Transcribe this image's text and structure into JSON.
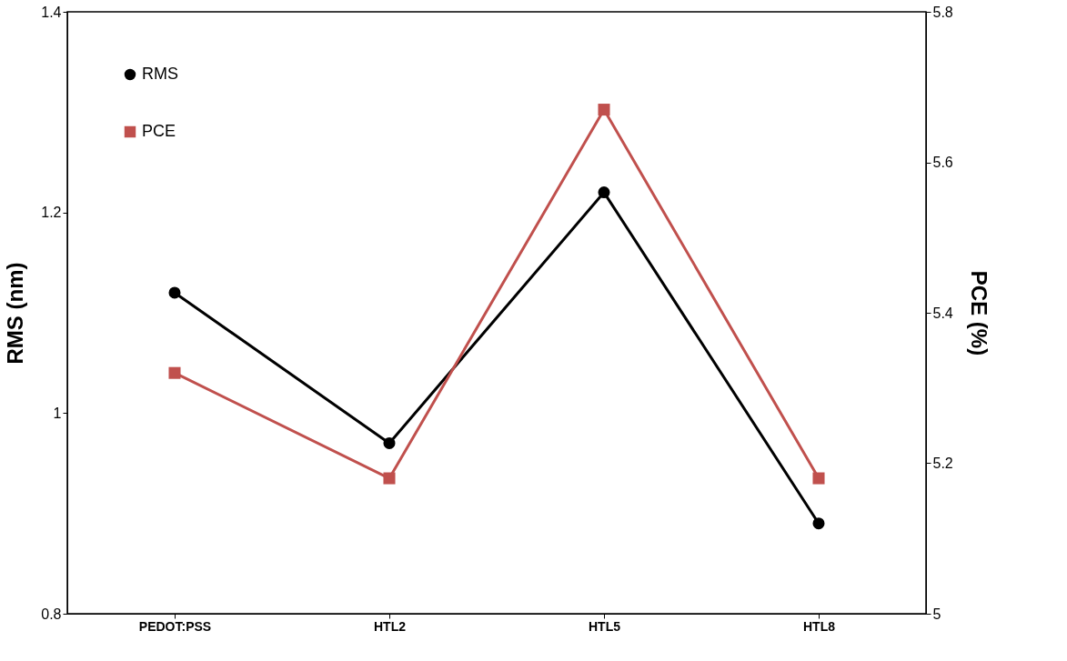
{
  "chart_data": {
    "type": "line",
    "xlabel": null,
    "ylabel": "RMS (nm)",
    "y2label": "PCE (%)",
    "categories": [
      "PEDOT:PSS",
      "HTL2",
      "HTL5",
      "HTL8"
    ],
    "series": [
      {
        "name": "RMS",
        "color": "#000000",
        "marker": "circle",
        "values": [
          1.12,
          0.97,
          1.22,
          0.89
        ]
      },
      {
        "name": "PCE",
        "color": "#c0504d",
        "marker": "square",
        "axis": "y2",
        "values": [
          5.32,
          5.18,
          5.67,
          5.18
        ]
      }
    ],
    "ylim": [
      0.8,
      1.4
    ],
    "yticks": [
      0.8,
      1,
      1.2,
      1.4
    ],
    "y2lim": [
      5,
      5.8
    ],
    "y2ticks": [
      5,
      5.2,
      5.4,
      5.6,
      5.8
    ],
    "grid": false,
    "legend": "top left",
    "line_style": "solid"
  }
}
